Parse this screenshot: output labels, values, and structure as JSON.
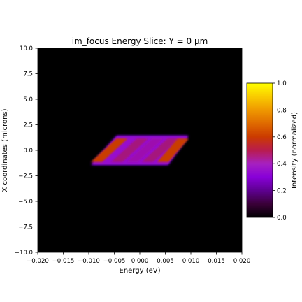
{
  "chart_data": {
    "type": "heatmap",
    "title": "im_focus Energy Slice: Y = 0 µm",
    "xlabel": "Energy (eV)",
    "ylabel": "X coordinates (microns)",
    "xlim": [
      -0.02,
      0.02
    ],
    "ylim": [
      -10,
      10
    ],
    "xticks": [
      "−0.020",
      "−0.015",
      "−0.010",
      "−0.005",
      "0.000",
      "0.005",
      "0.010",
      "0.015",
      "0.020"
    ],
    "xtick_values": [
      -0.02,
      -0.015,
      -0.01,
      -0.005,
      0.0,
      0.005,
      0.01,
      0.015,
      0.02
    ],
    "yticks": [
      "10.0",
      "7.5",
      "5.0",
      "2.5",
      "0.0",
      "−2.5",
      "−5.0",
      "−7.5",
      "−10.0"
    ],
    "ytick_values": [
      10,
      7.5,
      5,
      2.5,
      0,
      -2.5,
      -5,
      -7.5,
      -10
    ],
    "colormap": "gnuplot",
    "background_color": "#000000",
    "colorbar": {
      "label": "Intensity (normalized)",
      "range": [
        0,
        1
      ],
      "ticks": [
        "0.0",
        "0.2",
        "0.4",
        "0.6",
        "0.8",
        "1.0"
      ],
      "tick_values": [
        0.0,
        0.2,
        0.4,
        0.6,
        0.8,
        1.0
      ]
    },
    "data_region": {
      "shape": "parallelogram",
      "x_at_bottom": [
        -0.0095,
        0.0055
      ],
      "x_at_top": [
        -0.0045,
        0.0095
      ],
      "y_range": [
        -1.4,
        1.4
      ],
      "base_intensity": 0.35
    },
    "features": [
      {
        "x_bottom": -0.0085,
        "x_top": -0.0035,
        "intensity": 0.62
      },
      {
        "x_bottom": -0.0045,
        "x_top": 0.0005,
        "intensity": 0.42
      },
      {
        "x_bottom": -0.0015,
        "x_top": 0.0035,
        "intensity": 0.38
      },
      {
        "x_bottom": 0.0015,
        "x_top": 0.0065,
        "intensity": 0.42
      },
      {
        "x_bottom": 0.0045,
        "x_top": 0.0085,
        "intensity": 0.62
      }
    ]
  }
}
